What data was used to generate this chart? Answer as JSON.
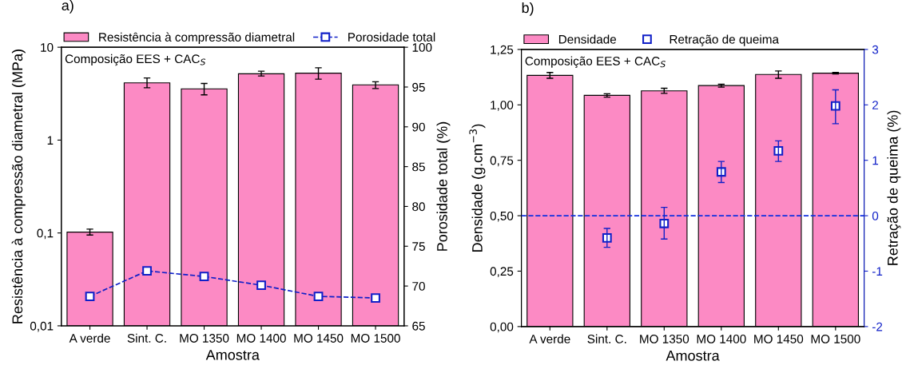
{
  "chart_data": [
    {
      "type": "bar",
      "categories": [
        "A verde",
        "Sint. C.",
        "MO 1350",
        "MO 1400",
        "MO 1450",
        "MO 1500"
      ],
      "xlabel": "Amostra",
      "ylabel": "Resistência à compressão diametral (MPa)",
      "y2label": "Porosidade total (%)",
      "log": "y",
      "ylim": [
        0.01,
        10
      ],
      "yticks": [
        {
          "value": 0.01,
          "label": "0,01"
        },
        {
          "value": 0.1,
          "label": "0,1"
        },
        1,
        10
      ],
      "y2lim": [
        65,
        100
      ],
      "y2ticks": [
        65,
        70,
        75,
        80,
        85,
        90,
        95,
        100
      ],
      "grid": false,
      "legend": "top",
      "annotations": [
        "a)",
        "Composição EES + CAC$_{S}$"
      ],
      "series": [
        {
          "name": "Resistência à compressão diametral",
          "color": "#fc8ac4",
          "values": [
            0.102,
            4.13,
            3.56,
            5.18,
            5.25,
            3.93
          ],
          "errors": [
            [
              0.095,
              0.11
            ],
            [
              3.66,
              4.67
            ],
            [
              3.07,
              4.07
            ],
            [
              4.9,
              5.52
            ],
            [
              4.53,
              6.0
            ],
            [
              3.59,
              4.25
            ]
          ]
        },
        {
          "name": "Porosidade total",
          "type": "line",
          "axis": "y2",
          "color": "#1020c8",
          "marker": "square",
          "line_style": "dashed",
          "values": [
            68.7,
            71.9,
            71.2,
            70.1,
            68.7,
            68.5
          ]
        }
      ]
    },
    {
      "type": "bar",
      "categories": [
        "A verde",
        "Sint. C.",
        "MO 1350",
        "MO 1400",
        "MO 1450",
        "MO 1500"
      ],
      "xlabel": "Amostra",
      "ylabel": "Densidade (g.cm$^{−3}$)",
      "y2label": "Retração de queima (%)",
      "ylim": [
        0,
        1.25
      ],
      "yticks": [
        {
          "value": 0,
          "label": "0,00"
        },
        {
          "value": 0.25,
          "label": "0,25"
        },
        {
          "value": 0.5,
          "label": "0,50"
        },
        {
          "value": 0.75,
          "label": "0,75"
        },
        {
          "value": 1.0,
          "label": "1,00"
        },
        {
          "value": 1.25,
          "label": "1,25"
        }
      ],
      "y2lim": [
        -2,
        3
      ],
      "y2ticks": [
        -2,
        -1,
        0,
        1,
        2,
        3
      ],
      "grid": false,
      "legend": "top",
      "annotations": [
        "b)",
        "Composição EES + CAC$_{S}$"
      ],
      "ref_lines": [
        {
          "axis": "y2",
          "value": 0,
          "color": "#1030e0",
          "line_style": "dashed"
        }
      ],
      "series": [
        {
          "name": "Densidade",
          "color": "#fc8ac4",
          "values": [
            1.133,
            1.043,
            1.063,
            1.087,
            1.137,
            1.143
          ],
          "errors": [
            [
              1.12,
              1.146
            ],
            [
              1.035,
              1.05
            ],
            [
              1.052,
              1.075
            ],
            [
              1.08,
              1.093
            ],
            [
              1.12,
              1.153
            ],
            [
              1.14,
              1.146
            ]
          ]
        },
        {
          "name": "Retração de queima",
          "type": "scatter",
          "axis": "y2",
          "color": "#1020c8",
          "marker": "square",
          "values": [
            null,
            -0.4,
            -0.14,
            0.79,
            1.17,
            1.98
          ],
          "errors": [
            null,
            [
              -0.57,
              -0.23
            ],
            [
              -0.42,
              0.15
            ],
            [
              0.6,
              0.98
            ],
            [
              0.98,
              1.35
            ],
            [
              1.66,
              2.27
            ]
          ]
        }
      ]
    }
  ]
}
